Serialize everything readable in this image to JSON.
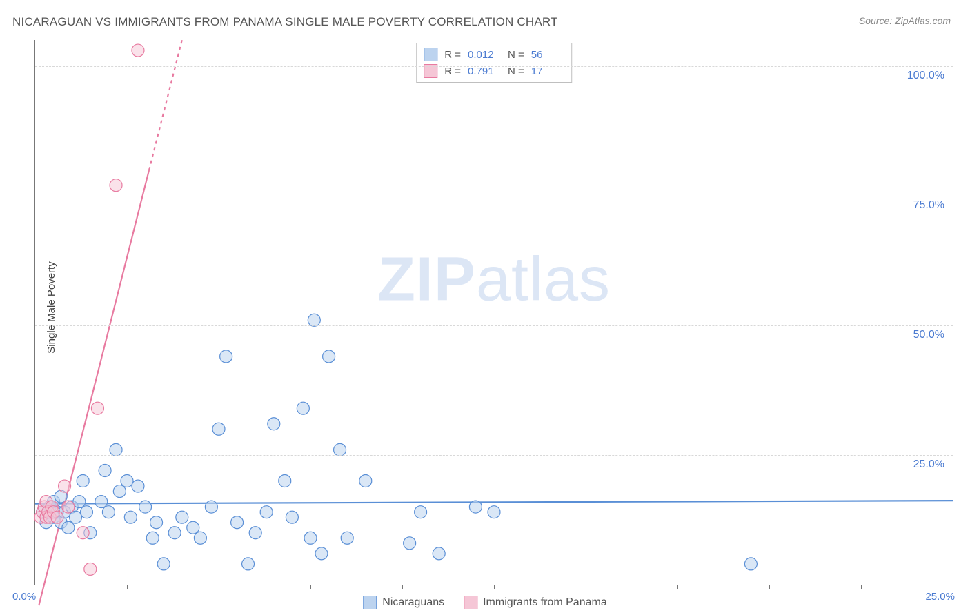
{
  "title": "NICARAGUAN VS IMMIGRANTS FROM PANAMA SINGLE MALE POVERTY CORRELATION CHART",
  "source": "Source: ZipAtlas.com",
  "y_axis_label": "Single Male Poverty",
  "watermark_bold": "ZIP",
  "watermark_rest": "atlas",
  "chart": {
    "type": "scatter",
    "xlim": [
      0,
      25
    ],
    "ylim": [
      0,
      105
    ],
    "x_origin_label": "0.0%",
    "x_max_label": "25.0%",
    "y_ticks": [
      {
        "v": 25,
        "label": "25.0%"
      },
      {
        "v": 50,
        "label": "50.0%"
      },
      {
        "v": 75,
        "label": "75.0%"
      },
      {
        "v": 100,
        "label": "100.0%"
      }
    ],
    "x_minor_ticks": [
      2.5,
      5,
      7.5,
      10,
      12.5,
      15,
      17.5,
      20,
      22.5,
      25
    ],
    "background_color": "#ffffff",
    "grid_color": "#d8d8d8",
    "marker_radius": 9,
    "marker_stroke_width": 1.2,
    "line_width": 2.2,
    "series": [
      {
        "name": "Nicaraguans",
        "fill": "#bcd3ef",
        "stroke": "#5a8fd6",
        "fill_opacity": 0.55,
        "R": "0.012",
        "N": "56",
        "trend": {
          "x1": 0,
          "y1": 15.6,
          "x2": 25,
          "y2": 16.2,
          "dash_from_x": null
        },
        "points": [
          [
            0.2,
            14
          ],
          [
            0.3,
            12
          ],
          [
            0.4,
            15
          ],
          [
            0.5,
            13
          ],
          [
            0.5,
            16
          ],
          [
            0.6,
            14
          ],
          [
            0.7,
            12
          ],
          [
            0.7,
            17
          ],
          [
            0.8,
            14
          ],
          [
            0.9,
            11
          ],
          [
            1.0,
            15
          ],
          [
            1.1,
            13
          ],
          [
            1.2,
            16
          ],
          [
            1.3,
            20
          ],
          [
            1.4,
            14
          ],
          [
            1.5,
            10
          ],
          [
            1.8,
            16
          ],
          [
            1.9,
            22
          ],
          [
            2.0,
            14
          ],
          [
            2.2,
            26
          ],
          [
            2.3,
            18
          ],
          [
            2.5,
            20
          ],
          [
            2.6,
            13
          ],
          [
            2.8,
            19
          ],
          [
            3.0,
            15
          ],
          [
            3.2,
            9
          ],
          [
            3.3,
            12
          ],
          [
            3.5,
            4
          ],
          [
            3.8,
            10
          ],
          [
            4.0,
            13
          ],
          [
            4.3,
            11
          ],
          [
            4.5,
            9
          ],
          [
            4.8,
            15
          ],
          [
            5.0,
            30
          ],
          [
            5.2,
            44
          ],
          [
            5.5,
            12
          ],
          [
            5.8,
            4
          ],
          [
            6.0,
            10
          ],
          [
            6.3,
            14
          ],
          [
            6.5,
            31
          ],
          [
            6.8,
            20
          ],
          [
            7.0,
            13
          ],
          [
            7.3,
            34
          ],
          [
            7.5,
            9
          ],
          [
            7.6,
            51
          ],
          [
            7.8,
            6
          ],
          [
            8.0,
            44
          ],
          [
            8.3,
            26
          ],
          [
            8.5,
            9
          ],
          [
            9.0,
            20
          ],
          [
            10.2,
            8
          ],
          [
            10.5,
            14
          ],
          [
            11.0,
            6
          ],
          [
            12.0,
            15
          ],
          [
            12.5,
            14
          ],
          [
            19.5,
            4
          ]
        ]
      },
      {
        "name": "Immigrants from Panama",
        "fill": "#f5c6d6",
        "stroke": "#e87aa0",
        "fill_opacity": 0.5,
        "R": "0.791",
        "N": "17",
        "trend": {
          "x1": 0.1,
          "y1": -4,
          "x2": 4.0,
          "y2": 105,
          "dash_from_x": 3.1
        },
        "points": [
          [
            0.15,
            13
          ],
          [
            0.2,
            14
          ],
          [
            0.25,
            15
          ],
          [
            0.3,
            13
          ],
          [
            0.3,
            16
          ],
          [
            0.35,
            14
          ],
          [
            0.4,
            13
          ],
          [
            0.45,
            15
          ],
          [
            0.5,
            14
          ],
          [
            0.6,
            13
          ],
          [
            0.8,
            19
          ],
          [
            0.9,
            15
          ],
          [
            1.3,
            10
          ],
          [
            1.5,
            3
          ],
          [
            1.7,
            34
          ],
          [
            2.2,
            77
          ],
          [
            2.8,
            103
          ]
        ]
      }
    ]
  },
  "legend": {
    "series1_label": "Nicaraguans",
    "series2_label": "Immigrants from Panama"
  },
  "stats_labels": {
    "R": "R =",
    "N": "N ="
  }
}
